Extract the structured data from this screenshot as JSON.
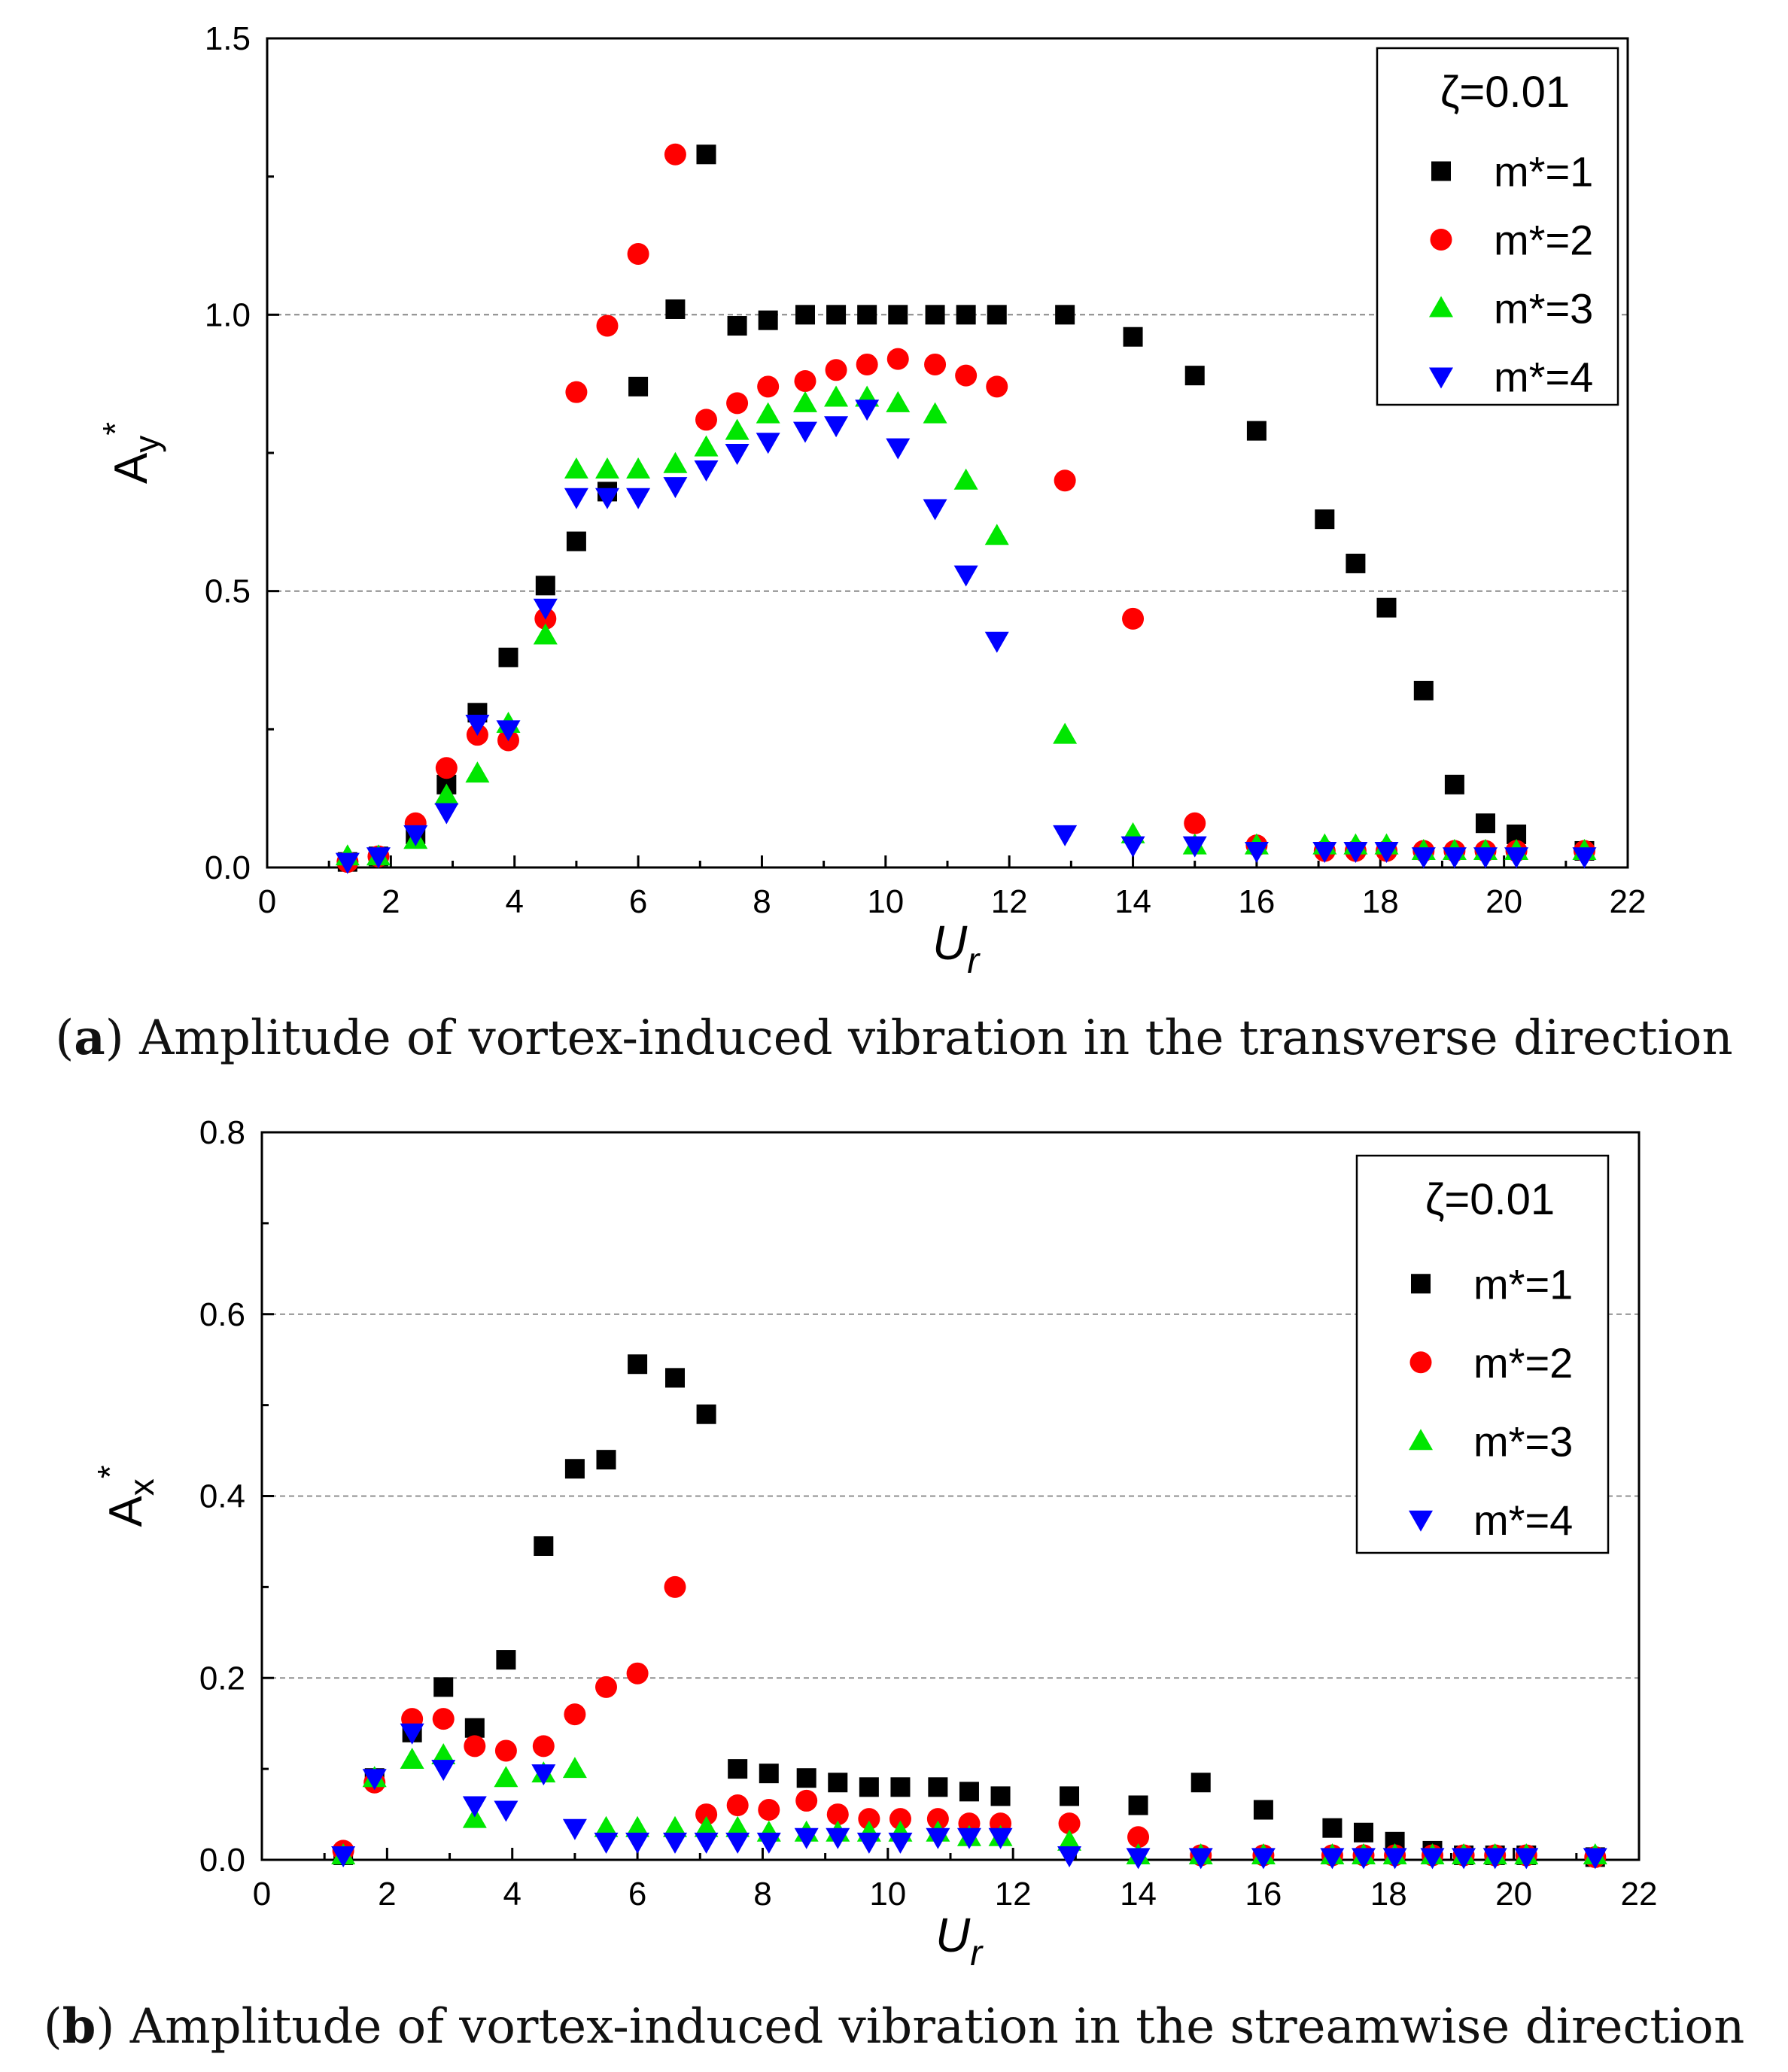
{
  "colors": {
    "m1": "#000000",
    "m2": "#ff0000",
    "m3": "#00e600",
    "m4": "#0000ff",
    "grid": "#808080"
  },
  "chart_data": [
    {
      "type": "scatter",
      "panel": "a",
      "caption_label": "a",
      "caption_text": "Amplitude of vortex-induced vibration in the transverse direction",
      "xlabel_main": "U",
      "xlabel_sub": "r",
      "ylabel_main": "A",
      "ylabel_sub": "y",
      "ylabel_sup": "*",
      "xlim": [
        0,
        22
      ],
      "ylim": [
        0,
        1.5
      ],
      "x_ticks": [
        "0",
        "2",
        "4",
        "6",
        "8",
        "10",
        "12",
        "14",
        "16",
        "18",
        "20",
        "22"
      ],
      "x_tick_values": [
        0,
        2,
        4,
        6,
        8,
        10,
        12,
        14,
        16,
        18,
        20,
        22
      ],
      "y_ticks": [
        "0.0",
        "0.5",
        "1.0",
        "1.5"
      ],
      "y_tick_values": [
        0,
        0.5,
        1.0,
        1.5
      ],
      "y_minor_values": [
        0.25,
        0.75,
        1.25
      ],
      "gridlines": [
        0.5,
        1.0
      ],
      "legend": {
        "position": "top-right",
        "title": "ζ=0.01",
        "entries": [
          "m*=1",
          "m*=2",
          "m*=3",
          "m*=4"
        ]
      },
      "series": [
        {
          "name": "m*=1",
          "marker": "square",
          "x": [
            1.3,
            1.8,
            2.4,
            2.9,
            3.4,
            3.9,
            4.5,
            5.0,
            5.5,
            6.0,
            6.6,
            7.1,
            7.6,
            8.1,
            8.7,
            9.2,
            9.7,
            10.2,
            10.8,
            11.3,
            11.8,
            12.9,
            14.0,
            15.0,
            16.0,
            17.1,
            17.6,
            18.1,
            18.7,
            19.2,
            19.7,
            20.2,
            21.3
          ],
          "y": [
            0.01,
            0.02,
            0.06,
            0.15,
            0.28,
            0.38,
            0.51,
            0.59,
            0.68,
            0.87,
            1.01,
            1.29,
            0.98,
            0.99,
            1.0,
            1.0,
            1.0,
            1.0,
            1.0,
            1.0,
            1.0,
            1.0,
            0.96,
            0.89,
            0.79,
            0.63,
            0.55,
            0.47,
            0.32,
            0.15,
            0.08,
            0.06,
            0.03
          ]
        },
        {
          "name": "m*=2",
          "marker": "circle",
          "x": [
            1.3,
            1.8,
            2.4,
            2.9,
            3.4,
            3.9,
            4.5,
            5.0,
            5.5,
            6.0,
            6.6,
            7.1,
            7.6,
            8.1,
            8.7,
            9.2,
            9.7,
            10.2,
            10.8,
            11.3,
            11.8,
            12.9,
            14.0,
            15.0,
            16.0,
            17.1,
            17.6,
            18.1,
            18.7,
            19.2,
            19.7,
            20.2,
            21.3
          ],
          "y": [
            0.01,
            0.02,
            0.08,
            0.18,
            0.24,
            0.23,
            0.45,
            0.86,
            0.98,
            1.11,
            1.29,
            0.81,
            0.84,
            0.87,
            0.88,
            0.9,
            0.91,
            0.92,
            0.91,
            0.89,
            0.87,
            0.7,
            0.45,
            0.08,
            0.04,
            0.03,
            0.03,
            0.03,
            0.03,
            0.03,
            0.03,
            0.03,
            0.03
          ]
        },
        {
          "name": "m*=3",
          "marker": "triangle-up",
          "x": [
            1.3,
            1.8,
            2.4,
            2.9,
            3.4,
            3.9,
            4.5,
            5.0,
            5.5,
            6.0,
            6.6,
            7.1,
            7.6,
            8.1,
            8.7,
            9.2,
            9.7,
            10.2,
            10.8,
            11.3,
            11.8,
            12.9,
            14.0,
            15.0,
            16.0,
            17.1,
            17.6,
            18.1,
            18.7,
            19.2,
            19.7,
            20.2,
            21.3
          ],
          "y": [
            0.02,
            0.02,
            0.05,
            0.13,
            0.17,
            0.26,
            0.42,
            0.72,
            0.72,
            0.72,
            0.73,
            0.76,
            0.79,
            0.82,
            0.84,
            0.85,
            0.85,
            0.84,
            0.82,
            0.7,
            0.6,
            0.24,
            0.06,
            0.04,
            0.04,
            0.04,
            0.04,
            0.04,
            0.03,
            0.03,
            0.03,
            0.03,
            0.03
          ]
        },
        {
          "name": "m*=4",
          "marker": "triangle-down",
          "x": [
            1.3,
            1.8,
            2.4,
            2.9,
            3.4,
            3.9,
            4.5,
            5.0,
            5.5,
            6.0,
            6.6,
            7.1,
            7.6,
            8.1,
            8.7,
            9.2,
            9.7,
            10.2,
            10.8,
            11.3,
            11.8,
            12.9,
            14.0,
            15.0,
            16.0,
            17.1,
            17.6,
            18.1,
            18.7,
            19.2,
            19.7,
            20.2,
            21.3
          ],
          "y": [
            0.01,
            0.02,
            0.06,
            0.1,
            0.26,
            0.25,
            0.47,
            0.67,
            0.67,
            0.67,
            0.69,
            0.72,
            0.75,
            0.77,
            0.79,
            0.8,
            0.83,
            0.76,
            0.65,
            0.53,
            0.41,
            0.06,
            0.04,
            0.04,
            0.03,
            0.03,
            0.03,
            0.03,
            0.02,
            0.02,
            0.02,
            0.02,
            0.02
          ]
        }
      ]
    },
    {
      "type": "scatter",
      "panel": "b",
      "caption_label": "b",
      "caption_text": "Amplitude of vortex-induced vibration in the streamwise direction",
      "xlabel_main": "U",
      "xlabel_sub": "r",
      "ylabel_main": "A",
      "ylabel_sub": "x",
      "ylabel_sup": "*",
      "xlim": [
        0,
        22
      ],
      "ylim": [
        0,
        0.8
      ],
      "x_ticks": [
        "0",
        "2",
        "4",
        "6",
        "8",
        "10",
        "12",
        "14",
        "16",
        "18",
        "20",
        "22"
      ],
      "x_tick_values": [
        0,
        2,
        4,
        6,
        8,
        10,
        12,
        14,
        16,
        18,
        20,
        22
      ],
      "y_ticks": [
        "0.0",
        "0.2",
        "0.4",
        "0.6",
        "0.8"
      ],
      "y_tick_values": [
        0,
        0.2,
        0.4,
        0.6,
        0.8
      ],
      "y_minor_values": [
        0.1,
        0.3,
        0.5,
        0.7
      ],
      "gridlines": [
        0.2,
        0.4,
        0.6
      ],
      "legend": {
        "position": "top-right",
        "title": "ζ=0.01",
        "entries": [
          "m*=1",
          "m*=2",
          "m*=3",
          "m*=4"
        ]
      },
      "series": [
        {
          "name": "m*=1",
          "marker": "square",
          "x": [
            1.3,
            1.8,
            2.4,
            2.9,
            3.4,
            3.9,
            4.5,
            5.0,
            5.5,
            6.0,
            6.6,
            7.1,
            7.6,
            8.1,
            8.7,
            9.2,
            9.7,
            10.2,
            10.8,
            11.3,
            11.8,
            12.9,
            14.0,
            15.0,
            16.0,
            17.1,
            17.6,
            18.1,
            18.7,
            19.2,
            19.7,
            20.2,
            21.3
          ],
          "y": [
            0.005,
            0.09,
            0.14,
            0.19,
            0.145,
            0.22,
            0.345,
            0.43,
            0.44,
            0.545,
            0.53,
            0.49,
            0.1,
            0.095,
            0.09,
            0.085,
            0.08,
            0.08,
            0.08,
            0.075,
            0.07,
            0.07,
            0.06,
            0.085,
            0.055,
            0.035,
            0.03,
            0.02,
            0.01,
            0.005,
            0.005,
            0.005,
            0.003
          ]
        },
        {
          "name": "m*=2",
          "marker": "circle",
          "x": [
            1.3,
            1.8,
            2.4,
            2.9,
            3.4,
            3.9,
            4.5,
            5.0,
            5.5,
            6.0,
            6.6,
            7.1,
            7.6,
            8.1,
            8.7,
            9.2,
            9.7,
            10.2,
            10.8,
            11.3,
            11.8,
            12.9,
            14.0,
            15.0,
            16.0,
            17.1,
            17.6,
            18.1,
            18.7,
            19.2,
            19.7,
            20.2,
            21.3
          ],
          "y": [
            0.01,
            0.085,
            0.155,
            0.155,
            0.125,
            0.12,
            0.125,
            0.16,
            0.19,
            0.205,
            0.3,
            0.05,
            0.06,
            0.055,
            0.065,
            0.05,
            0.045,
            0.045,
            0.045,
            0.04,
            0.04,
            0.04,
            0.025,
            0.005,
            0.005,
            0.005,
            0.005,
            0.005,
            0.005,
            0.005,
            0.005,
            0.005,
            0.003
          ]
        },
        {
          "name": "m*=3",
          "marker": "triangle-up",
          "x": [
            1.3,
            1.8,
            2.4,
            2.9,
            3.4,
            3.9,
            4.5,
            5.0,
            5.5,
            6.0,
            6.6,
            7.1,
            7.6,
            8.1,
            8.7,
            9.2,
            9.7,
            10.2,
            10.8,
            11.3,
            11.8,
            12.9,
            14.0,
            15.0,
            16.0,
            17.1,
            17.6,
            18.1,
            18.7,
            19.2,
            19.7,
            20.2,
            21.3
          ],
          "y": [
            0.005,
            0.09,
            0.11,
            0.115,
            0.045,
            0.09,
            0.095,
            0.1,
            0.035,
            0.035,
            0.035,
            0.035,
            0.035,
            0.03,
            0.03,
            0.03,
            0.03,
            0.03,
            0.03,
            0.025,
            0.025,
            0.02,
            0.005,
            0.005,
            0.005,
            0.005,
            0.005,
            0.005,
            0.005,
            0.005,
            0.005,
            0.005,
            0.005
          ]
        },
        {
          "name": "m*=4",
          "marker": "triangle-down",
          "x": [
            1.3,
            1.8,
            2.4,
            2.9,
            3.4,
            3.9,
            4.5,
            5.0,
            5.5,
            6.0,
            6.6,
            7.1,
            7.6,
            8.1,
            8.7,
            9.2,
            9.7,
            10.2,
            10.8,
            11.3,
            11.8,
            12.9,
            14.0,
            15.0,
            16.0,
            17.1,
            17.6,
            18.1,
            18.7,
            19.2,
            19.7,
            20.2,
            21.3
          ],
          "y": [
            0.005,
            0.09,
            0.14,
            0.1,
            0.06,
            0.055,
            0.095,
            0.035,
            0.02,
            0.02,
            0.02,
            0.02,
            0.02,
            0.02,
            0.025,
            0.025,
            0.02,
            0.02,
            0.025,
            0.025,
            0.025,
            0.005,
            0.003,
            0.003,
            0.003,
            0.003,
            0.003,
            0.003,
            0.003,
            0.003,
            0.003,
            0.003,
            0.003
          ]
        }
      ]
    }
  ]
}
